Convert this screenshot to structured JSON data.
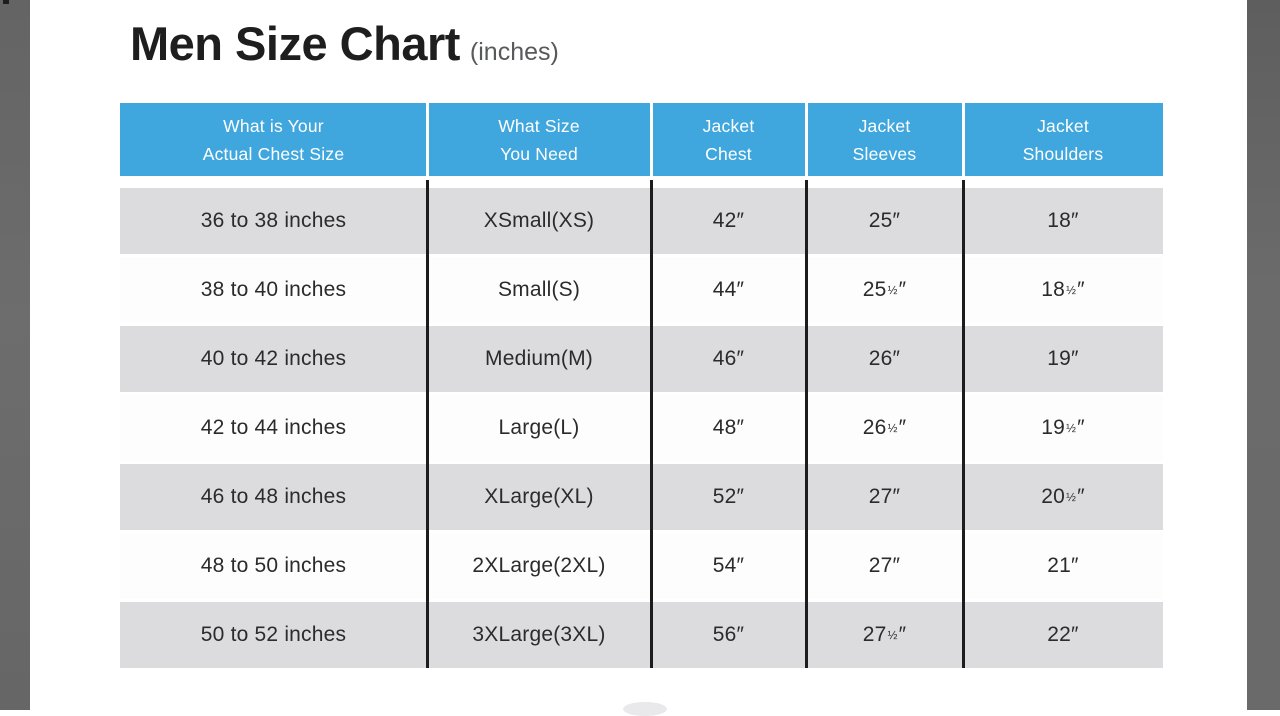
{
  "page": {
    "title_main": "Men Size Chart",
    "title_sub": "(inches)"
  },
  "chart_data": {
    "type": "table",
    "title": "Men Size Chart (inches)",
    "units": "inches",
    "columns": [
      "What is Your Actual Chest Size",
      "What Size You Need",
      "Jacket Chest",
      "Jacket Sleeves",
      "Jacket Shoulders"
    ],
    "column_header_lines": [
      [
        "What is Your",
        "Actual Chest Size"
      ],
      [
        "What Size",
        "You Need"
      ],
      [
        "Jacket",
        "Chest"
      ],
      [
        "Jacket",
        "Sleeves"
      ],
      [
        "Jacket",
        "Shoulders"
      ]
    ],
    "rows": [
      [
        "36 to 38 inches",
        "XSmall(XS)",
        "42″",
        "25″",
        "18″"
      ],
      [
        "38 to 40 inches",
        "Small(S)",
        "44″",
        "25½″",
        "18½″"
      ],
      [
        "40 to 42 inches",
        "Medium(M)",
        "46″",
        "26″",
        "19″"
      ],
      [
        "42 to 44 inches",
        "Large(L)",
        "48″",
        "26½″",
        "19½″"
      ],
      [
        "46 to 48 inches",
        "XLarge(XL)",
        "52″",
        "27″",
        "20½″"
      ],
      [
        "48 to 50 inches",
        "2XLarge(2XL)",
        "54″",
        "27″",
        "21″"
      ],
      [
        "50 to 52 inches",
        "3XLarge(3XL)",
        "56″",
        "27½″",
        "22″"
      ]
    ]
  },
  "colors": {
    "header_bg": "#3FA7DE",
    "header_text": "#FFFFFF",
    "row_gray": "#DCDCDE",
    "row_white": "#FDFDFD",
    "body_text": "#2B2B2B",
    "divider": "#1C1C1C",
    "side_strip": "#6A6A6A"
  }
}
